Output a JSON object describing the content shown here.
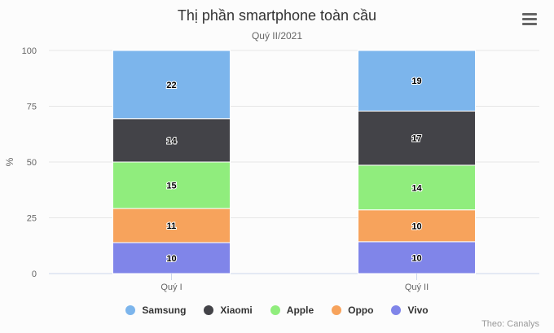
{
  "chart_data": {
    "type": "bar",
    "stacking": "percent",
    "title": "Thị phần smartphone toàn cầu",
    "subtitle": "Quý II/2021",
    "ylabel": "%",
    "ylim": [
      0,
      100
    ],
    "yticks": [
      "0",
      "25",
      "50",
      "75",
      "100"
    ],
    "grid": true,
    "legend_position": "bottom",
    "categories": [
      "Quý I",
      "Quý II"
    ],
    "series": [
      {
        "name": "Samsung",
        "color": "#7cb5ec",
        "values": [
          22,
          19
        ]
      },
      {
        "name": "Xiaomi",
        "color": "#434348",
        "values": [
          14,
          17
        ]
      },
      {
        "name": "Apple",
        "color": "#90ed7d",
        "values": [
          15,
          14
        ]
      },
      {
        "name": "Oppo",
        "color": "#f7a35c",
        "values": [
          11,
          10
        ]
      },
      {
        "name": "Vivo",
        "color": "#8085e9",
        "values": [
          10,
          10
        ]
      }
    ],
    "credits": "Theo: Canalys"
  },
  "menu_icon": "hamburger-menu-icon"
}
